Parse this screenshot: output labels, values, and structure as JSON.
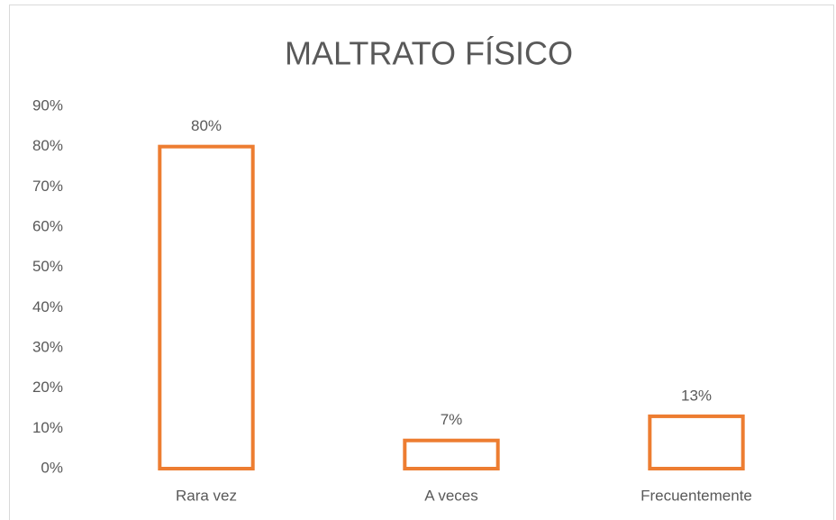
{
  "chart_data": {
    "type": "bar",
    "title": "MALTRATO FÍSICO",
    "categories": [
      "Rara vez",
      "A veces",
      "Frecuentemente"
    ],
    "values": [
      80,
      7,
      13
    ],
    "value_labels": [
      "80%",
      "7%",
      "13%"
    ],
    "color": "#ed7d31",
    "ylim": [
      0,
      90
    ],
    "yticks": [
      {
        "value": 0,
        "label": "0%"
      },
      {
        "value": 10,
        "label": "10%"
      },
      {
        "value": 20,
        "label": "20%"
      },
      {
        "value": 30,
        "label": "30%"
      },
      {
        "value": 40,
        "label": "40%"
      },
      {
        "value": 50,
        "label": "50%"
      },
      {
        "value": 60,
        "label": "60%"
      },
      {
        "value": 70,
        "label": "70%"
      },
      {
        "value": 80,
        "label": "80%"
      },
      {
        "value": 90,
        "label": "90%"
      }
    ],
    "grid": false
  }
}
